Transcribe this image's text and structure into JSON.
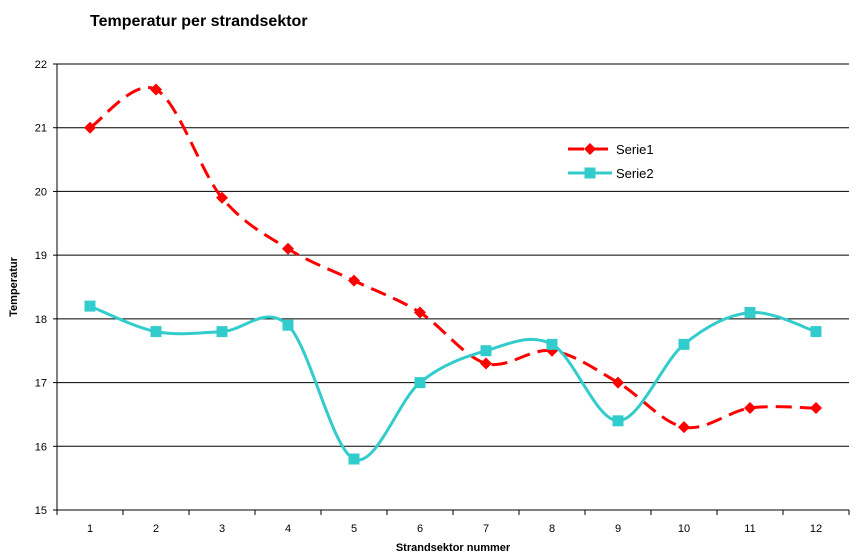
{
  "chart_data": {
    "type": "line",
    "title": "Temperatur per strandsektor",
    "xlabel": "Strandsektor nummer",
    "ylabel": "Temperatur",
    "categories": [
      "1",
      "2",
      "3",
      "4",
      "5",
      "6",
      "7",
      "8",
      "9",
      "10",
      "11",
      "12"
    ],
    "ylim": [
      15,
      22
    ],
    "yticks": [
      "15",
      "16",
      "17",
      "18",
      "19",
      "20",
      "21",
      "22"
    ],
    "grid": true,
    "legend": "right",
    "series": [
      {
        "name": "Serie1",
        "values": [
          21.0,
          21.6,
          19.9,
          19.1,
          18.6,
          18.1,
          17.3,
          17.5,
          17.0,
          16.3,
          16.6,
          16.6
        ],
        "color": "#ff0000",
        "marker": "diamond",
        "line": "dashed"
      },
      {
        "name": "Serie2",
        "values": [
          18.2,
          17.8,
          17.8,
          17.9,
          15.8,
          17.0,
          17.5,
          17.6,
          16.4,
          17.6,
          18.1,
          17.8
        ],
        "color": "#33cccc",
        "marker": "square",
        "line": "solid"
      }
    ]
  }
}
